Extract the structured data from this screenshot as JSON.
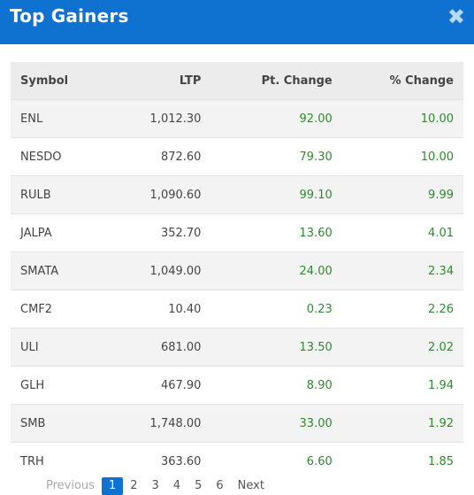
{
  "header": {
    "title": "Top Gainers",
    "close": "✖"
  },
  "table": {
    "header": [
      "Symbol",
      "LTP",
      "Pt. Change",
      "% Change"
    ],
    "rows": [
      [
        "ENL",
        "1,012.30",
        "92.00",
        "10.00"
      ],
      [
        "NESDO",
        "872.60",
        "79.30",
        "10.00"
      ],
      [
        "RULB",
        "1,090.60",
        "99.10",
        "9.99"
      ],
      [
        "JALPA",
        "352.70",
        "13.60",
        "4.01"
      ],
      [
        "SMATA",
        "1,049.00",
        "24.00",
        "2.34"
      ],
      [
        "CMF2",
        "10.40",
        "0.23",
        "2.26"
      ],
      [
        "ULI",
        "681.00",
        "13.50",
        "2.02"
      ],
      [
        "GLH",
        "467.90",
        "8.90",
        "1.94"
      ],
      [
        "SMB",
        "1,748.00",
        "33.00",
        "1.92"
      ],
      [
        "TRH",
        "363.60",
        "6.60",
        "1.85"
      ]
    ]
  },
  "pagination": {
    "previous": "Previous",
    "pages": [
      "1",
      "2",
      "3",
      "4",
      "5",
      "6"
    ],
    "next": "Next"
  }
}
